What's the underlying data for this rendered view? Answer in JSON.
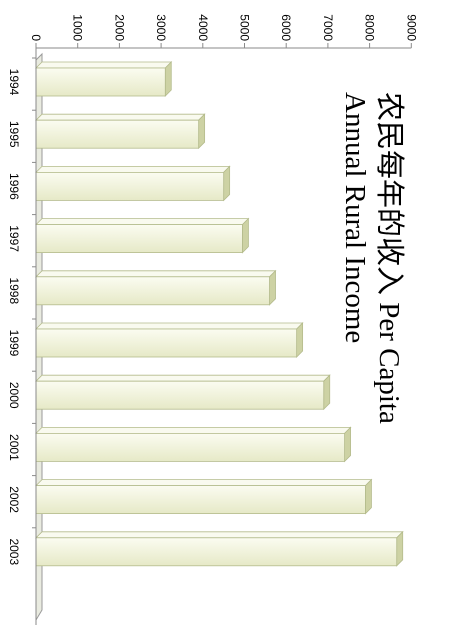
{
  "chart_data": {
    "type": "bar",
    "orientation": "rotated-90-clockwise",
    "title_line1": "农民每年的收入 Per Capita",
    "title_line2": "Annual Rural Income",
    "categories": [
      "1994",
      "1995",
      "1996",
      "1997",
      "1998",
      "1999",
      "2000",
      "2001",
      "2002",
      "2003"
    ],
    "values": [
      3100,
      3900,
      4500,
      4950,
      5600,
      6250,
      6900,
      7400,
      7900,
      8650
    ],
    "ylim": [
      0,
      9000
    ],
    "yticks": [
      "0",
      "1000",
      "2000",
      "3000",
      "4000",
      "5000",
      "6000",
      "7000",
      "8000",
      "9000"
    ],
    "grid": false,
    "bar_color": "#f2f4df",
    "bar_edge": "#b4bb8c"
  }
}
